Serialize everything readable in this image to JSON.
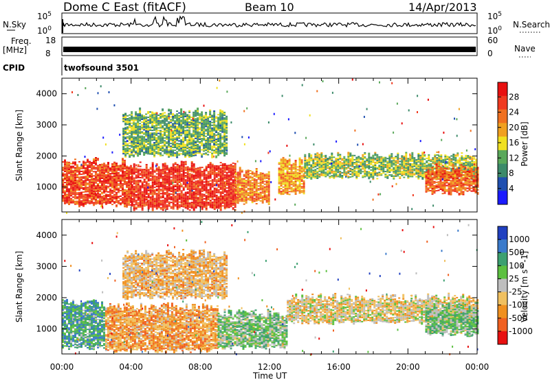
{
  "header": {
    "station": "Dome C East (fitACF)",
    "beam": "Beam 10",
    "date": "14/Apr/2013"
  },
  "params": {
    "nsky_label": "N.Sky",
    "nsky_ticks": [
      "10^5",
      "10^0"
    ],
    "nsearch_label": "N.Search",
    "nsearch_ticks": [
      "10^5",
      "10^0"
    ],
    "freq_label_1": "Freq.",
    "freq_label_2": "[MHz]",
    "freq_ticks": [
      "18",
      "8"
    ],
    "nave_label": "Nave",
    "nave_ticks": [
      "60",
      "0"
    ],
    "cpid_label": "CPID",
    "cpid_value": "twofsound 3501"
  },
  "colors": {
    "power_scale": [
      "#1a1aff",
      "#1f4fb0",
      "#3c8a6a",
      "#5aa85a",
      "#f0e020",
      "#f0a020",
      "#f07020",
      "#f03a20",
      "#e81010"
    ],
    "velocity_scale": [
      "#2040c0",
      "#3a7acb",
      "#3ca070",
      "#5cc040",
      "#bebebe",
      "#f0c060",
      "#f09020",
      "#f06020",
      "#e81010"
    ]
  },
  "chart_data": [
    {
      "type": "heatmap",
      "panel": "power",
      "ylabel": "Slant Range [km]",
      "xlabel": "Time UT",
      "x_ticks": [
        "00:00",
        "04:00",
        "08:00",
        "12:00",
        "16:00",
        "20:00",
        "00:00"
      ],
      "y_ticks": [
        "1000",
        "2000",
        "3000",
        "4000"
      ],
      "ylim": [
        200,
        4500
      ],
      "xlim_hours": [
        0,
        24
      ],
      "colorbar": {
        "label": "Power [dB]",
        "ticks": [
          "28",
          "24",
          "20",
          "16",
          "12",
          "8",
          "4"
        ],
        "range": [
          0,
          32
        ]
      },
      "regions": [
        {
          "hours": [
            0,
            4
          ],
          "range_km": [
            400,
            1800
          ],
          "value_db": 26
        },
        {
          "hours": [
            4,
            10
          ],
          "range_km": [
            300,
            1700
          ],
          "value_db": 28
        },
        {
          "hours": [
            3.5,
            9.5
          ],
          "range_km": [
            2000,
            3400
          ],
          "value_db": 12
        },
        {
          "hours": [
            10,
            12
          ],
          "range_km": [
            500,
            1500
          ],
          "value_db": 22
        },
        {
          "hours": [
            12.5,
            14
          ],
          "range_km": [
            800,
            1800
          ],
          "value_db": 20
        },
        {
          "hours": [
            14,
            24
          ],
          "range_km": [
            1300,
            2000
          ],
          "value_db": 14
        },
        {
          "hours": [
            21,
            24
          ],
          "range_km": [
            800,
            1600
          ],
          "value_db": 24
        }
      ]
    },
    {
      "type": "heatmap",
      "panel": "velocity",
      "ylabel": "Slant Range [km]",
      "xlabel": "Time UT",
      "x_ticks": [
        "00:00",
        "04:00",
        "08:00",
        "12:00",
        "16:00",
        "20:00",
        "00:00"
      ],
      "y_ticks": [
        "1000",
        "2000",
        "3000",
        "4000"
      ],
      "ylim": [
        200,
        4500
      ],
      "xlim_hours": [
        0,
        24
      ],
      "colorbar": {
        "label": "Velocity [m s^-1]",
        "ticks": [
          "1000",
          "500",
          "100",
          "25",
          "-25",
          "-100",
          "-500",
          "-1000"
        ]
      },
      "regions": [
        {
          "hours": [
            0,
            2.5
          ],
          "range_km": [
            400,
            1800
          ],
          "value_ms": 300
        },
        {
          "hours": [
            2.5,
            9
          ],
          "range_km": [
            300,
            1700
          ],
          "value_ms": -300
        },
        {
          "hours": [
            3.5,
            9.5
          ],
          "range_km": [
            2000,
            3400
          ],
          "value_ms": -200
        },
        {
          "hours": [
            9,
            13
          ],
          "range_km": [
            400,
            1500
          ],
          "value_ms": 150
        },
        {
          "hours": [
            13,
            24
          ],
          "range_km": [
            1200,
            2000
          ],
          "value_ms": -100
        },
        {
          "hours": [
            21,
            24
          ],
          "range_km": [
            800,
            1700
          ],
          "value_ms": 150
        }
      ]
    }
  ]
}
